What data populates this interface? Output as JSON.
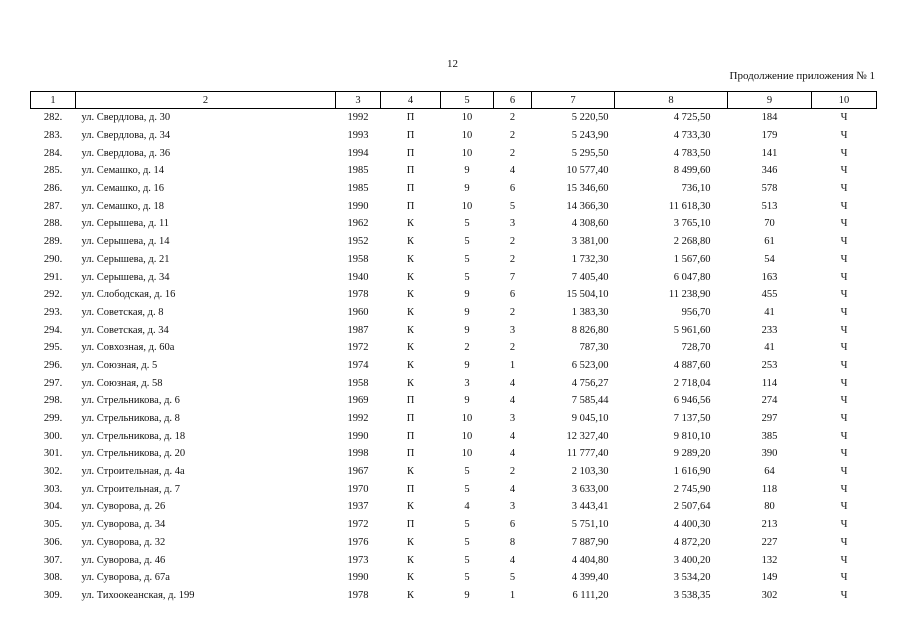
{
  "page_number": "12",
  "continuation_label": "Продолжение приложения № 1",
  "columns": [
    "1",
    "2",
    "3",
    "4",
    "5",
    "6",
    "7",
    "8",
    "9",
    "10"
  ],
  "rows": [
    [
      "282.",
      "ул. Свердлова, д. 30",
      "1992",
      "П",
      "10",
      "2",
      "5 220,50",
      "4 725,50",
      "184",
      "Ч"
    ],
    [
      "283.",
      "ул. Свердлова, д. 34",
      "1993",
      "П",
      "10",
      "2",
      "5 243,90",
      "4 733,30",
      "179",
      "Ч"
    ],
    [
      "284.",
      "ул. Свердлова, д. 36",
      "1994",
      "П",
      "10",
      "2",
      "5 295,50",
      "4 783,50",
      "141",
      "Ч"
    ],
    [
      "285.",
      "ул. Семашко, д. 14",
      "1985",
      "П",
      "9",
      "4",
      "10 577,40",
      "8 499,60",
      "346",
      "Ч"
    ],
    [
      "286.",
      "ул. Семашко, д. 16",
      "1985",
      "П",
      "9",
      "6",
      "15 346,60",
      "736,10",
      "578",
      "Ч"
    ],
    [
      "287.",
      "ул. Семашко, д. 18",
      "1990",
      "П",
      "10",
      "5",
      "14 366,30",
      "11 618,30",
      "513",
      "Ч"
    ],
    [
      "288.",
      "ул. Серышева, д. 11",
      "1962",
      "К",
      "5",
      "3",
      "4 308,60",
      "3 765,10",
      "70",
      "Ч"
    ],
    [
      "289.",
      "ул. Серышева, д. 14",
      "1952",
      "К",
      "5",
      "2",
      "3 381,00",
      "2 268,80",
      "61",
      "Ч"
    ],
    [
      "290.",
      "ул. Серышева, д. 21",
      "1958",
      "К",
      "5",
      "2",
      "1 732,30",
      "1 567,60",
      "54",
      "Ч"
    ],
    [
      "291.",
      "ул. Серышева, д. 34",
      "1940",
      "К",
      "5",
      "7",
      "7 405,40",
      "6 047,80",
      "163",
      "Ч"
    ],
    [
      "292.",
      "ул. Слободская, д. 16",
      "1978",
      "К",
      "9",
      "6",
      "15 504,10",
      "11 238,90",
      "455",
      "Ч"
    ],
    [
      "293.",
      "ул. Советская, д. 8",
      "1960",
      "К",
      "9",
      "2",
      "1 383,30",
      "956,70",
      "41",
      "Ч"
    ],
    [
      "294.",
      "ул. Советская, д. 34",
      "1987",
      "К",
      "9",
      "3",
      "8 826,80",
      "5 961,60",
      "233",
      "Ч"
    ],
    [
      "295.",
      "ул. Совхозная, д. 60а",
      "1972",
      "К",
      "2",
      "2",
      "787,30",
      "728,70",
      "41",
      "Ч"
    ],
    [
      "296.",
      "ул. Союзная, д. 5",
      "1974",
      "К",
      "9",
      "1",
      "6 523,00",
      "4 887,60",
      "253",
      "Ч"
    ],
    [
      "297.",
      "ул. Союзная, д. 58",
      "1958",
      "К",
      "3",
      "4",
      "4 756,27",
      "2 718,04",
      "114",
      "Ч"
    ],
    [
      "298.",
      "ул. Стрельникова, д. 6",
      "1969",
      "П",
      "9",
      "4",
      "7 585,44",
      "6 946,56",
      "274",
      "Ч"
    ],
    [
      "299.",
      "ул. Стрельникова, д. 8",
      "1992",
      "П",
      "10",
      "3",
      "9 045,10",
      "7 137,50",
      "297",
      "Ч"
    ],
    [
      "300.",
      "ул. Стрельникова, д. 18",
      "1990",
      "П",
      "10",
      "4",
      "12 327,40",
      "9 810,10",
      "385",
      "Ч"
    ],
    [
      "301.",
      "ул. Стрельникова, д. 20",
      "1998",
      "П",
      "10",
      "4",
      "11 777,40",
      "9 289,20",
      "390",
      "Ч"
    ],
    [
      "302.",
      "ул. Строительная, д. 4а",
      "1967",
      "К",
      "5",
      "2",
      "2 103,30",
      "1 616,90",
      "64",
      "Ч"
    ],
    [
      "303.",
      "ул. Строительная, д. 7",
      "1970",
      "П",
      "5",
      "4",
      "3 633,00",
      "2 745,90",
      "118",
      "Ч"
    ],
    [
      "304.",
      "ул. Суворова, д. 26",
      "1937",
      "К",
      "4",
      "3",
      "3 443,41",
      "2 507,64",
      "80",
      "Ч"
    ],
    [
      "305.",
      "ул. Суворова, д. 34",
      "1972",
      "П",
      "5",
      "6",
      "5 751,10",
      "4 400,30",
      "213",
      "Ч"
    ],
    [
      "306.",
      "ул. Суворова, д. 32",
      "1976",
      "К",
      "5",
      "8",
      "7 887,90",
      "4 872,20",
      "227",
      "Ч"
    ],
    [
      "307.",
      "ул. Суворова, д. 46",
      "1973",
      "К",
      "5",
      "4",
      "4 404,80",
      "3 400,20",
      "132",
      "Ч"
    ],
    [
      "308.",
      "ул. Суворова, д. 67а",
      "1990",
      "К",
      "5",
      "5",
      "4 399,40",
      "3 534,20",
      "149",
      "Ч"
    ],
    [
      "309.",
      "ул. Тихоокеанская, д. 199",
      "1978",
      "К",
      "9",
      "1",
      "6 111,20",
      "3 538,35",
      "302",
      "Ч"
    ]
  ]
}
